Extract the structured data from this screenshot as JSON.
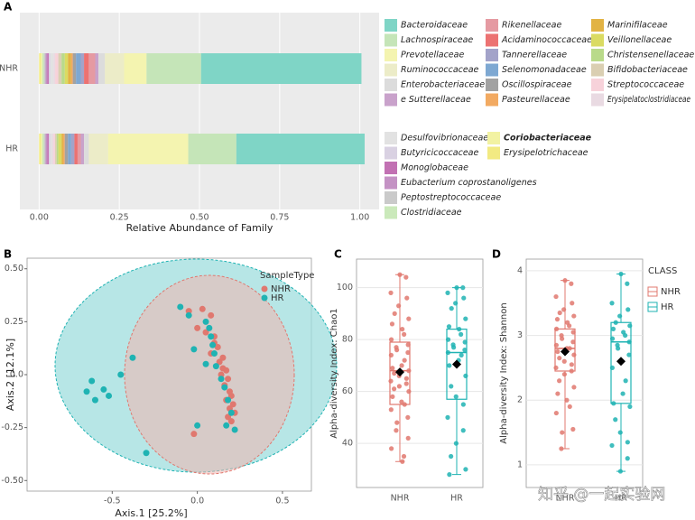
{
  "watermark": "知乎 @一起实验网",
  "chart_data": [
    {
      "type": "bar",
      "panel_label": "A",
      "orientation": "horizontal",
      "stacked": true,
      "categories": [
        "NHR",
        "HR"
      ],
      "xlabel": "Relative Abundance of Family",
      "xlim": [
        -0.06,
        1.06
      ],
      "xticks": [
        {
          "value": 0,
          "label": "0.00"
        },
        0.25,
        {
          "value": 0.5,
          "label": "0.50"
        },
        0.75,
        {
          "value": 1,
          "label": "1.00"
        }
      ],
      "grid": true,
      "series": [
        {
          "name": "Bacteroidaceae",
          "color": "#7fd5c6",
          "values": [
            0.5,
            0.4
          ]
        },
        {
          "name": "Lachnospiraceae",
          "color": "#c5e5b8",
          "values": [
            0.17,
            0.15
          ]
        },
        {
          "name": "Prevotellaceae",
          "color": "#f4f4b0",
          "values": [
            0.07,
            0.25
          ]
        },
        {
          "name": "Ruminococcaceae",
          "color": "#ececc8",
          "values": [
            0.06,
            0.06
          ]
        },
        {
          "name": "Enterobacteriaceae",
          "color": "#dcdcdc",
          "values": [
            0.02,
            0.015
          ]
        },
        {
          "name": "e Sutterellaceae",
          "color": "#c9a2cb",
          "values": [
            0.01,
            0.01
          ]
        },
        {
          "name": "Rikenellaceae",
          "color": "#e59aa2",
          "values": [
            0.02,
            0.01
          ]
        },
        {
          "name": "Acidaminococcaceae",
          "color": "#ec7272",
          "values": [
            0.015,
            0.01
          ]
        },
        {
          "name": "Tannerellaceae",
          "color": "#a3a3c9",
          "values": [
            0.01,
            0.01
          ]
        },
        {
          "name": "Selenomonadaceae",
          "color": "#7ea8d2",
          "values": [
            0.015,
            0.01
          ]
        },
        {
          "name": "Oscillospiraceae",
          "color": "#a2a2a2",
          "values": [
            0.01,
            0.01
          ]
        },
        {
          "name": "Pasteurellaceae",
          "color": "#f2aa62",
          "values": [
            0.005,
            0.005
          ]
        },
        {
          "name": "Marinifilaceae",
          "color": "#e2b344",
          "values": [
            0.01,
            0.005
          ]
        },
        {
          "name": "Veillonellaceae",
          "color": "#dadb62",
          "values": [
            0.01,
            0.01
          ]
        },
        {
          "name": "Christensenellaceae",
          "color": "#b9da8a",
          "values": [
            0.01,
            0.005
          ]
        },
        {
          "name": "Bifidobacteriaceae",
          "color": "#dacfb2",
          "values": [
            0.01,
            0.005
          ]
        },
        {
          "name": "Streptococcaceae",
          "color": "#f7d2da",
          "values": [
            0.01,
            0.005
          ]
        },
        {
          "name": "Erysipelatoclostridiaceae",
          "color": "#e9dae2",
          "values": [
            0.005,
            0.005
          ]
        },
        {
          "name": "Desulfovibrionaceae",
          "color": "#e2e2e2",
          "values": [
            0.01,
            0.005
          ]
        },
        {
          "name": "Butyricicoccaceae",
          "color": "#d9d1e2",
          "values": [
            0.005,
            0.005
          ]
        },
        {
          "name": "Monoglobaceae",
          "color": "#c271b3",
          "values": [
            0.005,
            0.005
          ]
        },
        {
          "name": "Eubacterium coprostanoligenes",
          "color": "#c492c4",
          "values": [
            0.005,
            0.005
          ]
        },
        {
          "name": "Peptostreptococcaceae",
          "color": "#cacaca",
          "values": [
            0.005,
            0.005
          ]
        },
        {
          "name": "Clostridiaceae",
          "color": "#cae9ba",
          "values": [
            0.005,
            0.005
          ]
        },
        {
          "name": "Coriobacteriaceae",
          "color": "#f2f2a2",
          "values": [
            0.005,
            0.005
          ]
        },
        {
          "name": "Erysipelotrichaceae",
          "color": "#f2ea82",
          "values": [
            0.005,
            0.005
          ]
        }
      ]
    },
    {
      "type": "scatter",
      "panel_label": "B",
      "xlabel": "Axis.1   [25.2%]",
      "ylabel": "Axis.2   [12.1%]",
      "xlim": [
        -1.0,
        0.67
      ],
      "ylim": [
        -0.55,
        0.55
      ],
      "xticks": [
        -0.5,
        {
          "value": 0,
          "label": "0.0"
        },
        0.5
      ],
      "yticks": [
        {
          "value": -0.5,
          "label": "-0.50"
        },
        -0.25,
        {
          "value": 0,
          "label": "0.0"
        },
        0.25,
        {
          "value": 0.5,
          "label": "0.50"
        }
      ],
      "legend_title": "SampleType",
      "series": [
        {
          "name": "NHR",
          "color": "#e0786f",
          "x": [
            -0.05,
            0.03,
            0.08,
            0.0,
            0.05,
            0.1,
            0.12,
            0.08,
            0.13,
            0.15,
            0.17,
            0.14,
            0.18,
            0.16,
            0.19,
            0.2,
            0.17,
            0.21,
            0.19,
            0.22,
            0.18,
            0.2,
            -0.02,
            0.15,
            0.1
          ],
          "y": [
            0.3,
            0.31,
            0.28,
            0.22,
            0.2,
            0.18,
            0.13,
            0.1,
            0.06,
            0.03,
            0.02,
            0.0,
            -0.02,
            -0.05,
            -0.08,
            -0.1,
            -0.12,
            -0.14,
            -0.16,
            -0.18,
            -0.2,
            -0.22,
            -0.28,
            0.08,
            0.15
          ]
        },
        {
          "name": "HR",
          "color": "#1fb3b3",
          "x": [
            -0.62,
            -0.65,
            -0.6,
            -0.55,
            -0.52,
            -0.45,
            -0.3,
            -0.38,
            -0.1,
            -0.05,
            0.05,
            0.07,
            0.08,
            0.09,
            -0.02,
            0.1,
            0.11,
            0.14,
            0.16,
            0.18,
            0.2,
            0.17,
            0.22,
            0.0,
            0.05
          ],
          "y": [
            -0.03,
            -0.08,
            -0.12,
            -0.07,
            -0.1,
            0.0,
            -0.37,
            0.08,
            0.32,
            0.28,
            0.25,
            0.22,
            0.18,
            0.14,
            0.12,
            0.1,
            0.04,
            -0.02,
            -0.06,
            -0.12,
            -0.18,
            -0.24,
            -0.26,
            -0.24,
            0.05
          ]
        }
      ]
    },
    {
      "type": "box",
      "panel_label": "C",
      "categories": [
        "NHR",
        "HR"
      ],
      "ylabel": "Alpha-diversity Index: Chao1",
      "ylim": [
        23,
        111
      ],
      "yticks": [
        40,
        60,
        80,
        100
      ],
      "series": [
        {
          "name": "NHR",
          "color": "#e0786f",
          "min": 33,
          "q1": 55,
          "median": 68,
          "q3": 79,
          "max": 105,
          "mean": 67.5,
          "points": [
            105,
            104,
            98,
            96,
            93,
            90,
            88,
            86,
            84,
            82,
            80,
            78,
            77,
            76,
            75,
            74,
            72,
            70,
            69,
            68,
            67,
            66,
            65,
            64,
            63,
            62,
            61,
            60,
            58,
            56,
            55,
            53,
            50,
            48,
            45,
            42,
            38,
            35,
            33
          ]
        },
        {
          "name": "HR",
          "color": "#1fb3b3",
          "min": 28,
          "q1": 57,
          "median": 75,
          "q3": 84,
          "max": 100,
          "mean": 70.5,
          "points": [
            100,
            100,
            98,
            96,
            94,
            92,
            88,
            85,
            84,
            82,
            80,
            79,
            78,
            77,
            76,
            75,
            74,
            72,
            70,
            66,
            62,
            58,
            55,
            50,
            45,
            40,
            35,
            30,
            28
          ]
        }
      ]
    },
    {
      "type": "box",
      "panel_label": "D",
      "categories": [
        "NHR",
        "HR"
      ],
      "ylabel": "Alpha-diversity Index: Shannon",
      "ylim": [
        0.65,
        4.18
      ],
      "yticks": [
        1,
        2,
        3,
        4
      ],
      "legend_title": "CLASS",
      "series": [
        {
          "name": "NHR",
          "color": "#e0786f",
          "min": 1.25,
          "q1": 2.45,
          "median": 2.8,
          "q3": 3.1,
          "max": 3.85,
          "mean": 2.75,
          "points": [
            3.85,
            3.8,
            3.6,
            3.5,
            3.4,
            3.35,
            3.3,
            3.25,
            3.2,
            3.15,
            3.1,
            3.05,
            3.0,
            2.95,
            2.9,
            2.85,
            2.8,
            2.8,
            2.75,
            2.7,
            2.65,
            2.6,
            2.55,
            2.5,
            2.45,
            2.4,
            2.3,
            2.2,
            2.1,
            2.0,
            1.9,
            1.8,
            1.55,
            1.5,
            1.25
          ]
        },
        {
          "name": "HR",
          "color": "#1fb3b3",
          "min": 0.9,
          "q1": 1.95,
          "median": 2.9,
          "q3": 3.2,
          "max": 3.95,
          "mean": 2.6,
          "points": [
            3.95,
            3.8,
            3.5,
            3.4,
            3.3,
            3.2,
            3.15,
            3.1,
            3.05,
            3.0,
            2.95,
            2.9,
            2.85,
            2.8,
            2.7,
            2.5,
            2.3,
            2.1,
            1.95,
            1.9,
            1.7,
            1.5,
            1.35,
            1.3,
            1.1,
            0.9
          ]
        }
      ]
    }
  ]
}
